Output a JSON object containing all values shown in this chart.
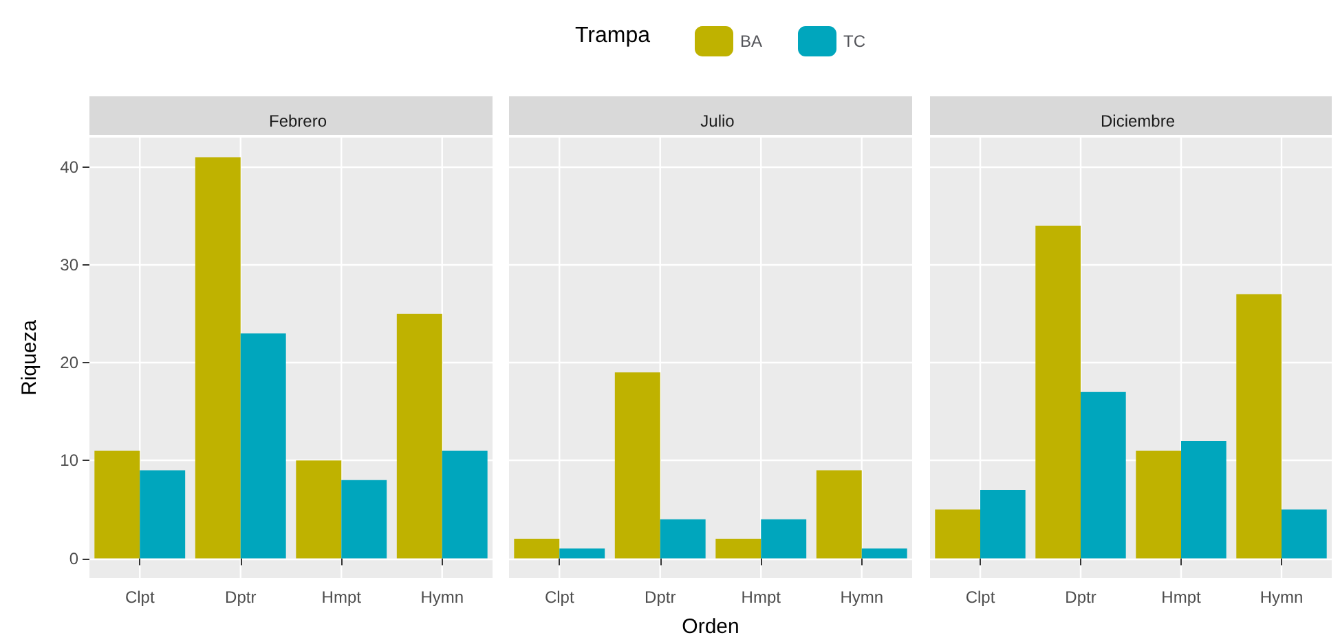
{
  "chart_data": [
    {
      "type": "bar",
      "title": "Febrero",
      "ylabel": "Riqueza",
      "categories": [
        "Clpt",
        "Dptr",
        "Hmpt",
        "Hymn"
      ],
      "ylim": [
        -2,
        43
      ],
      "yticks": [
        0,
        10,
        20,
        30,
        40
      ],
      "grid": true,
      "legend": false,
      "series": [
        {
          "color": "#bfb200",
          "values": [
            11,
            41,
            10,
            25
          ]
        },
        {
          "color": "#00a6bd",
          "values": [
            9,
            23,
            8,
            11
          ]
        }
      ]
    },
    {
      "type": "bar",
      "title": "Julio",
      "xlabel": "Orden",
      "legend_title": "Trampa",
      "categories": [
        "Clpt",
        "Dptr",
        "Hmpt",
        "Hymn"
      ],
      "ylim": [
        -2,
        43
      ],
      "yticks": [
        0,
        10,
        20,
        30,
        40
      ],
      "grid": true,
      "legend": "top",
      "tick_labels": "x",
      "series": [
        {
          "name": "BA",
          "color": "#bfb200",
          "values": [
            2,
            19,
            2,
            9
          ]
        },
        {
          "name": "TC",
          "color": "#00a6bd",
          "values": [
            1,
            4,
            4,
            1
          ]
        }
      ]
    },
    {
      "type": "bar",
      "title": "Diciembre",
      "categories": [
        "Clpt",
        "Dptr",
        "Hmpt",
        "Hymn"
      ],
      "ylim": [
        -2,
        43
      ],
      "yticks": [
        0,
        10,
        20,
        30,
        40
      ],
      "grid": true,
      "legend": false,
      "tick_labels": "x",
      "series": [
        {
          "color": "#bfb200",
          "values": [
            5,
            34,
            11,
            27
          ]
        },
        {
          "color": "#00a6bd",
          "values": [
            7,
            17,
            12,
            5
          ]
        }
      ]
    }
  ]
}
